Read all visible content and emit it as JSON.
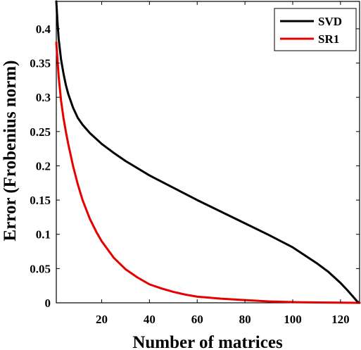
{
  "chart_data": {
    "type": "line",
    "xlabel": "Number of matrices",
    "ylabel": "Error (Frobenius norm)",
    "xlim": [
      1,
      128
    ],
    "ylim": [
      0,
      0.44
    ],
    "xticks": [
      20,
      40,
      60,
      80,
      100,
      120
    ],
    "yticks": [
      0,
      0.05,
      0.1,
      0.15,
      0.2,
      0.25,
      0.3,
      0.35,
      0.4
    ],
    "ytick_labels": [
      "0",
      "0.05",
      "0.1",
      "0.15",
      "0.2",
      "0.25",
      "0.3",
      "0.35",
      "0.4"
    ],
    "grid": false,
    "legend": "top-right",
    "series": [
      {
        "name": "SVD",
        "color": "#000000",
        "x": [
          1,
          1.5,
          2,
          3,
          4,
          5,
          6,
          8,
          10,
          12,
          15,
          20,
          25,
          30,
          40,
          50,
          60,
          70,
          80,
          90,
          100,
          110,
          115,
          120,
          123,
          125,
          126,
          127,
          128
        ],
        "y": [
          0.44,
          0.41,
          0.385,
          0.355,
          0.335,
          0.318,
          0.305,
          0.285,
          0.27,
          0.26,
          0.248,
          0.232,
          0.219,
          0.207,
          0.186,
          0.168,
          0.15,
          0.133,
          0.116,
          0.099,
          0.081,
          0.058,
          0.045,
          0.029,
          0.018,
          0.01,
          0.006,
          0.002,
          0.0
        ]
      },
      {
        "name": "SR1",
        "color": "#e60000",
        "x": [
          1,
          1.5,
          2,
          3,
          4,
          5,
          6,
          8,
          10,
          12,
          15,
          18,
          20,
          25,
          30,
          35,
          40,
          45,
          50,
          55,
          60,
          70,
          80,
          90,
          100,
          110,
          120,
          128
        ],
        "y": [
          0.38,
          0.355,
          0.33,
          0.295,
          0.27,
          0.25,
          0.232,
          0.2,
          0.173,
          0.15,
          0.123,
          0.102,
          0.09,
          0.066,
          0.049,
          0.037,
          0.027,
          0.021,
          0.016,
          0.012,
          0.009,
          0.006,
          0.004,
          0.002,
          0.001,
          0.0005,
          0.0002,
          0.0
        ]
      }
    ]
  }
}
